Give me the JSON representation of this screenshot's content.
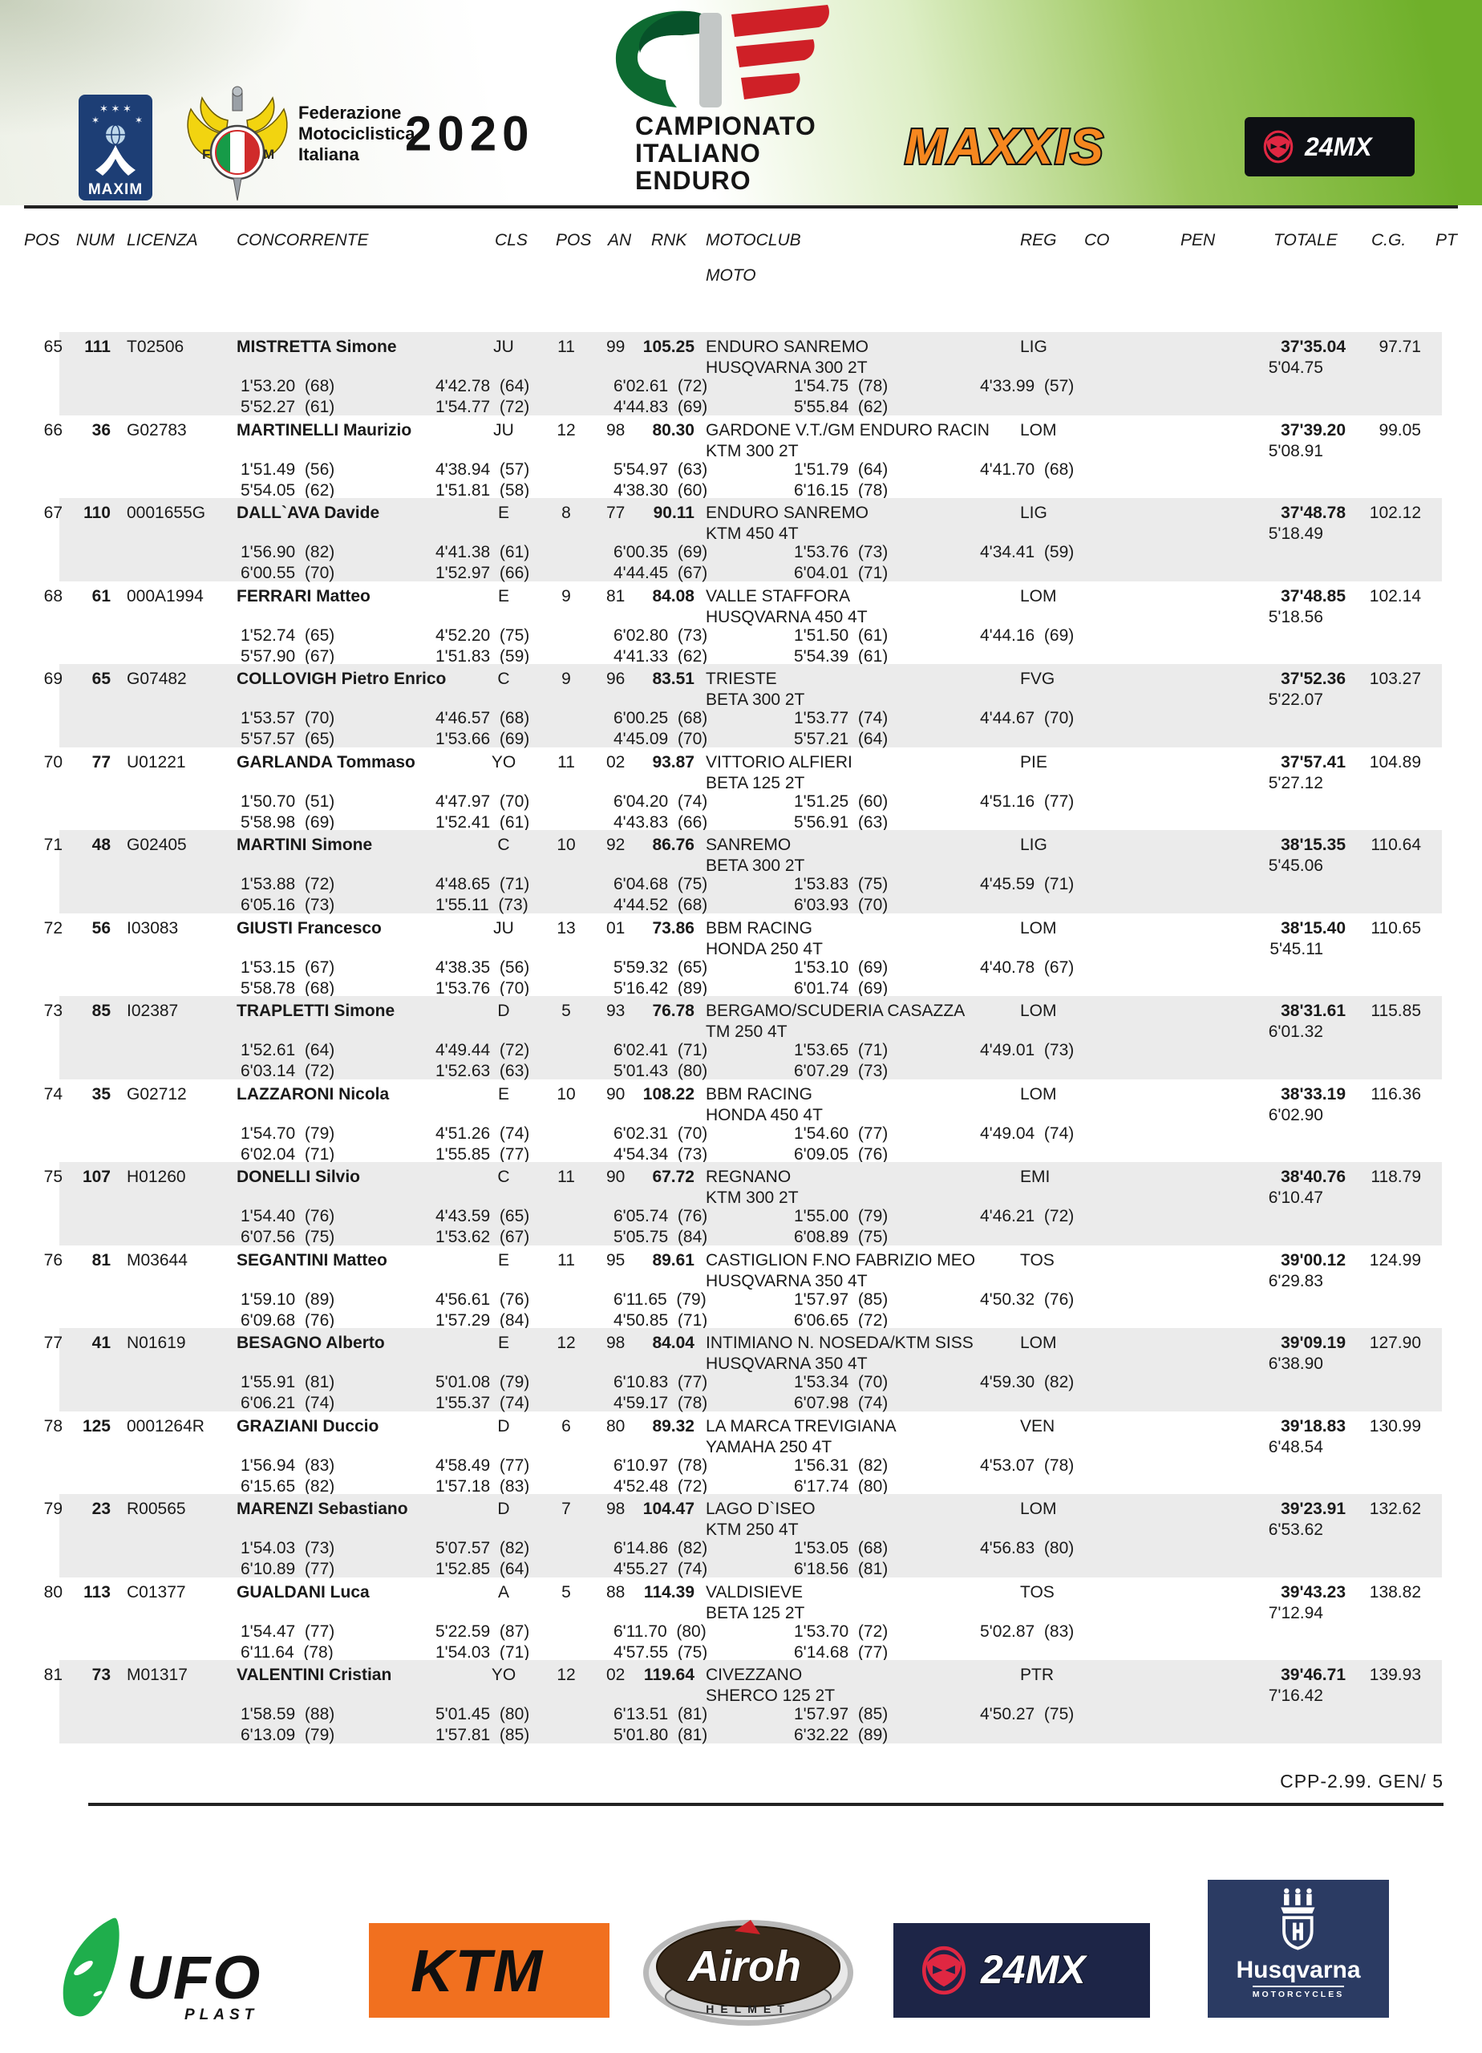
{
  "header": {
    "maxim": "MAXIM",
    "fmi_text": "Federazione\nMotociclistica\nItaliana",
    "year": "2020",
    "title_lines": [
      "CAMPIONATO",
      "ITALIANO",
      "ENDURO"
    ],
    "maxxis": "MAXXIS",
    "mx24": "24MX"
  },
  "table": {
    "columns": [
      "POS",
      "NUM",
      "LICENZA",
      "CONCORRENTE",
      "CLS",
      "POS",
      "AN",
      "RNK",
      "MOTOCLUB",
      "REG",
      "CO",
      "PEN",
      "TOTALE",
      "C.G.",
      "PT"
    ],
    "moto_label": "MOTO",
    "rows": [
      {
        "pos": "65",
        "num": "111",
        "lic": "T02506",
        "name": "MISTRETTA Simone",
        "cls": "JU",
        "cpos": "11",
        "an": "99",
        "rnk": "105.25",
        "club": "ENDURO SANREMO",
        "moto": "HUSQVARNA 300 2T",
        "reg": "LIG",
        "tot": "37'35.04",
        "cg": "97.71",
        "gap": "5'04.75",
        "t1": [
          "1'53.20  (68)",
          "4'42.78  (64)",
          "6'02.61  (72)",
          "1'54.75  (78)",
          "4'33.99  (57)"
        ],
        "t2": [
          "5'52.27  (61)",
          "1'54.77  (72)",
          "4'44.83  (69)",
          "5'55.84  (62)"
        ]
      },
      {
        "pos": "66",
        "num": "36",
        "lic": "G02783",
        "name": "MARTINELLI Maurizio",
        "cls": "JU",
        "cpos": "12",
        "an": "98",
        "rnk": "80.30",
        "club": "GARDONE V.T./GM ENDURO RACIN",
        "moto": "KTM 300 2T",
        "reg": "LOM",
        "tot": "37'39.20",
        "cg": "99.05",
        "gap": "5'08.91",
        "t1": [
          "1'51.49  (56)",
          "4'38.94  (57)",
          "5'54.97  (63)",
          "1'51.79  (64)",
          "4'41.70  (68)"
        ],
        "t2": [
          "5'54.05  (62)",
          "1'51.81  (58)",
          "4'38.30  (60)",
          "6'16.15  (78)"
        ]
      },
      {
        "pos": "67",
        "num": "110",
        "lic": "0001655G",
        "name": "DALL`AVA Davide",
        "cls": "E",
        "cpos": "8",
        "an": "77",
        "rnk": "90.11",
        "club": "ENDURO SANREMO",
        "moto": "KTM 450 4T",
        "reg": "LIG",
        "tot": "37'48.78",
        "cg": "102.12",
        "gap": "5'18.49",
        "t1": [
          "1'56.90  (82)",
          "4'41.38  (61)",
          "6'00.35  (69)",
          "1'53.76  (73)",
          "4'34.41  (59)"
        ],
        "t2": [
          "6'00.55  (70)",
          "1'52.97  (66)",
          "4'44.45  (67)",
          "6'04.01  (71)"
        ]
      },
      {
        "pos": "68",
        "num": "61",
        "lic": "000A1994",
        "name": "FERRARI Matteo",
        "cls": "E",
        "cpos": "9",
        "an": "81",
        "rnk": "84.08",
        "club": "VALLE STAFFORA",
        "moto": "HUSQVARNA 450 4T",
        "reg": "LOM",
        "tot": "37'48.85",
        "cg": "102.14",
        "gap": "5'18.56",
        "t1": [
          "1'52.74  (65)",
          "4'52.20  (75)",
          "6'02.80  (73)",
          "1'51.50  (61)",
          "4'44.16  (69)"
        ],
        "t2": [
          "5'57.90  (67)",
          "1'51.83  (59)",
          "4'41.33  (62)",
          "5'54.39  (61)"
        ]
      },
      {
        "pos": "69",
        "num": "65",
        "lic": "G07482",
        "name": "COLLOVIGH Pietro Enrico",
        "cls": "C",
        "cpos": "9",
        "an": "96",
        "rnk": "83.51",
        "club": "TRIESTE",
        "moto": "BETA 300 2T",
        "reg": "FVG",
        "tot": "37'52.36",
        "cg": "103.27",
        "gap": "5'22.07",
        "t1": [
          "1'53.57  (70)",
          "4'46.57  (68)",
          "6'00.25  (68)",
          "1'53.77  (74)",
          "4'44.67  (70)"
        ],
        "t2": [
          "5'57.57  (65)",
          "1'53.66  (69)",
          "4'45.09  (70)",
          "5'57.21  (64)"
        ]
      },
      {
        "pos": "70",
        "num": "77",
        "lic": "U01221",
        "name": "GARLANDA Tommaso",
        "cls": "YO",
        "cpos": "11",
        "an": "02",
        "rnk": "93.87",
        "club": "VITTORIO ALFIERI",
        "moto": "BETA 125 2T",
        "reg": "PIE",
        "tot": "37'57.41",
        "cg": "104.89",
        "gap": "5'27.12",
        "t1": [
          "1'50.70  (51)",
          "4'47.97  (70)",
          "6'04.20  (74)",
          "1'51.25  (60)",
          "4'51.16  (77)"
        ],
        "t2": [
          "5'58.98  (69)",
          "1'52.41  (61)",
          "4'43.83  (66)",
          "5'56.91  (63)"
        ]
      },
      {
        "pos": "71",
        "num": "48",
        "lic": "G02405",
        "name": "MARTINI Simone",
        "cls": "C",
        "cpos": "10",
        "an": "92",
        "rnk": "86.76",
        "club": "SANREMO",
        "moto": "BETA 300 2T",
        "reg": "LIG",
        "tot": "38'15.35",
        "cg": "110.64",
        "gap": "5'45.06",
        "t1": [
          "1'53.88  (72)",
          "4'48.65  (71)",
          "6'04.68  (75)",
          "1'53.83  (75)",
          "4'45.59  (71)"
        ],
        "t2": [
          "6'05.16  (73)",
          "1'55.11  (73)",
          "4'44.52  (68)",
          "6'03.93  (70)"
        ]
      },
      {
        "pos": "72",
        "num": "56",
        "lic": "I03083",
        "name": "GIUSTI Francesco",
        "cls": "JU",
        "cpos": "13",
        "an": "01",
        "rnk": "73.86",
        "club": "BBM RACING",
        "moto": "HONDA 250 4T",
        "reg": "LOM",
        "tot": "38'15.40",
        "cg": "110.65",
        "gap": "5'45.11",
        "t1": [
          "1'53.15  (67)",
          "4'38.35  (56)",
          "5'59.32  (65)",
          "1'53.10  (69)",
          "4'40.78  (67)"
        ],
        "t2": [
          "5'58.78  (68)",
          "1'53.76  (70)",
          "5'16.42  (89)",
          "6'01.74  (69)"
        ]
      },
      {
        "pos": "73",
        "num": "85",
        "lic": "I02387",
        "name": "TRAPLETTI Simone",
        "cls": "D",
        "cpos": "5",
        "an": "93",
        "rnk": "76.78",
        "club": "BERGAMO/SCUDERIA CASAZZA",
        "moto": "TM 250 4T",
        "reg": "LOM",
        "tot": "38'31.61",
        "cg": "115.85",
        "gap": "6'01.32",
        "t1": [
          "1'52.61  (64)",
          "4'49.44  (72)",
          "6'02.41  (71)",
          "1'53.65  (71)",
          "4'49.01  (73)"
        ],
        "t2": [
          "6'03.14  (72)",
          "1'52.63  (63)",
          "5'01.43  (80)",
          "6'07.29  (73)"
        ]
      },
      {
        "pos": "74",
        "num": "35",
        "lic": "G02712",
        "name": "LAZZARONI Nicola",
        "cls": "E",
        "cpos": "10",
        "an": "90",
        "rnk": "108.22",
        "club": "BBM RACING",
        "moto": "HONDA 450 4T",
        "reg": "LOM",
        "tot": "38'33.19",
        "cg": "116.36",
        "gap": "6'02.90",
        "t1": [
          "1'54.70  (79)",
          "4'51.26  (74)",
          "6'02.31  (70)",
          "1'54.60  (77)",
          "4'49.04  (74)"
        ],
        "t2": [
          "6'02.04  (71)",
          "1'55.85  (77)",
          "4'54.34  (73)",
          "6'09.05  (76)"
        ]
      },
      {
        "pos": "75",
        "num": "107",
        "lic": "H01260",
        "name": "DONELLI Silvio",
        "cls": "C",
        "cpos": "11",
        "an": "90",
        "rnk": "67.72",
        "club": "REGNANO",
        "moto": "KTM 300 2T",
        "reg": "EMI",
        "tot": "38'40.76",
        "cg": "118.79",
        "gap": "6'10.47",
        "t1": [
          "1'54.40  (76)",
          "4'43.59  (65)",
          "6'05.74  (76)",
          "1'55.00  (79)",
          "4'46.21  (72)"
        ],
        "t2": [
          "6'07.56  (75)",
          "1'53.62  (67)",
          "5'05.75  (84)",
          "6'08.89  (75)"
        ]
      },
      {
        "pos": "76",
        "num": "81",
        "lic": "M03644",
        "name": "SEGANTINI Matteo",
        "cls": "E",
        "cpos": "11",
        "an": "95",
        "rnk": "89.61",
        "club": "CASTIGLION F.NO FABRIZIO MEO",
        "moto": "HUSQVARNA 350 4T",
        "reg": "TOS",
        "tot": "39'00.12",
        "cg": "124.99",
        "gap": "6'29.83",
        "t1": [
          "1'59.10  (89)",
          "4'56.61  (76)",
          "6'11.65  (79)",
          "1'57.97  (85)",
          "4'50.32  (76)"
        ],
        "t2": [
          "6'09.68  (76)",
          "1'57.29  (84)",
          "4'50.85  (71)",
          "6'06.65  (72)"
        ]
      },
      {
        "pos": "77",
        "num": "41",
        "lic": "N01619",
        "name": "BESAGNO Alberto",
        "cls": "E",
        "cpos": "12",
        "an": "98",
        "rnk": "84.04",
        "club": "INTIMIANO N. NOSEDA/KTM SISS",
        "moto": "HUSQVARNA 350 4T",
        "reg": "LOM",
        "tot": "39'09.19",
        "cg": "127.90",
        "gap": "6'38.90",
        "t1": [
          "1'55.91  (81)",
          "5'01.08  (79)",
          "6'10.83  (77)",
          "1'53.34  (70)",
          "4'59.30  (82)"
        ],
        "t2": [
          "6'06.21  (74)",
          "1'55.37  (74)",
          "4'59.17  (78)",
          "6'07.98  (74)"
        ]
      },
      {
        "pos": "78",
        "num": "125",
        "lic": "0001264R",
        "name": "GRAZIANI Duccio",
        "cls": "D",
        "cpos": "6",
        "an": "80",
        "rnk": "89.32",
        "club": "LA MARCA TREVIGIANA",
        "moto": "YAMAHA 250 4T",
        "reg": "VEN",
        "tot": "39'18.83",
        "cg": "130.99",
        "gap": "6'48.54",
        "t1": [
          "1'56.94  (83)",
          "4'58.49  (77)",
          "6'10.97  (78)",
          "1'56.31  (82)",
          "4'53.07  (78)"
        ],
        "t2": [
          "6'15.65  (82)",
          "1'57.18  (83)",
          "4'52.48  (72)",
          "6'17.74  (80)"
        ]
      },
      {
        "pos": "79",
        "num": "23",
        "lic": "R00565",
        "name": "MARENZI Sebastiano",
        "cls": "D",
        "cpos": "7",
        "an": "98",
        "rnk": "104.47",
        "club": "LAGO D`ISEO",
        "moto": "KTM 250 4T",
        "reg": "LOM",
        "tot": "39'23.91",
        "cg": "132.62",
        "gap": "6'53.62",
        "t1": [
          "1'54.03  (73)",
          "5'07.57  (82)",
          "6'14.86  (82)",
          "1'53.05  (68)",
          "4'56.83  (80)"
        ],
        "t2": [
          "6'10.89  (77)",
          "1'52.85  (64)",
          "4'55.27  (74)",
          "6'18.56  (81)"
        ]
      },
      {
        "pos": "80",
        "num": "113",
        "lic": "C01377",
        "name": "GUALDANI Luca",
        "cls": "A",
        "cpos": "5",
        "an": "88",
        "rnk": "114.39",
        "club": "VALDISIEVE",
        "moto": "BETA 125 2T",
        "reg": "TOS",
        "tot": "39'43.23",
        "cg": "138.82",
        "gap": "7'12.94",
        "t1": [
          "1'54.47  (77)",
          "5'22.59  (87)",
          "6'11.70  (80)",
          "1'53.70  (72)",
          "5'02.87  (83)"
        ],
        "t2": [
          "6'11.64  (78)",
          "1'54.03  (71)",
          "4'57.55  (75)",
          "6'14.68  (77)"
        ]
      },
      {
        "pos": "81",
        "num": "73",
        "lic": "M01317",
        "name": "VALENTINI Cristian",
        "cls": "YO",
        "cpos": "12",
        "an": "02",
        "rnk": "119.64",
        "club": "CIVEZZANO",
        "moto": "SHERCO 125 2T",
        "reg": "PTR",
        "tot": "39'46.71",
        "cg": "139.93",
        "gap": "7'16.42",
        "t1": [
          "1'58.59  (88)",
          "5'01.45  (80)",
          "6'13.51  (81)",
          "1'57.97  (85)",
          "4'50.27  (75)"
        ],
        "t2": [
          "6'13.09  (79)",
          "1'57.81  (85)",
          "5'01.80  (81)",
          "6'32.22  (89)"
        ]
      }
    ]
  },
  "footer": {
    "code": "CPP-2.99. GEN/ 5"
  },
  "bottom": {
    "ufo": "UFO",
    "ufo_sub": "PLAST",
    "ktm": "KTM",
    "airoh": "Airoh",
    "airoh_sub": "HELMET",
    "mx24": "24MX",
    "husq": "Husqvarna",
    "husq_sub": "MOTORCYCLES"
  },
  "colors": {
    "stripe": "#ebebeb",
    "band_green": "#6fb02a",
    "maxxis_orange": "#f6871f",
    "ktm_orange": "#f1701f",
    "navy": "#1d2547",
    "husqvarna_navy": "#2b3b63",
    "cie_green": "#0d6a31",
    "cie_red": "#cf2027",
    "ufo_green": "#1fae4c"
  }
}
